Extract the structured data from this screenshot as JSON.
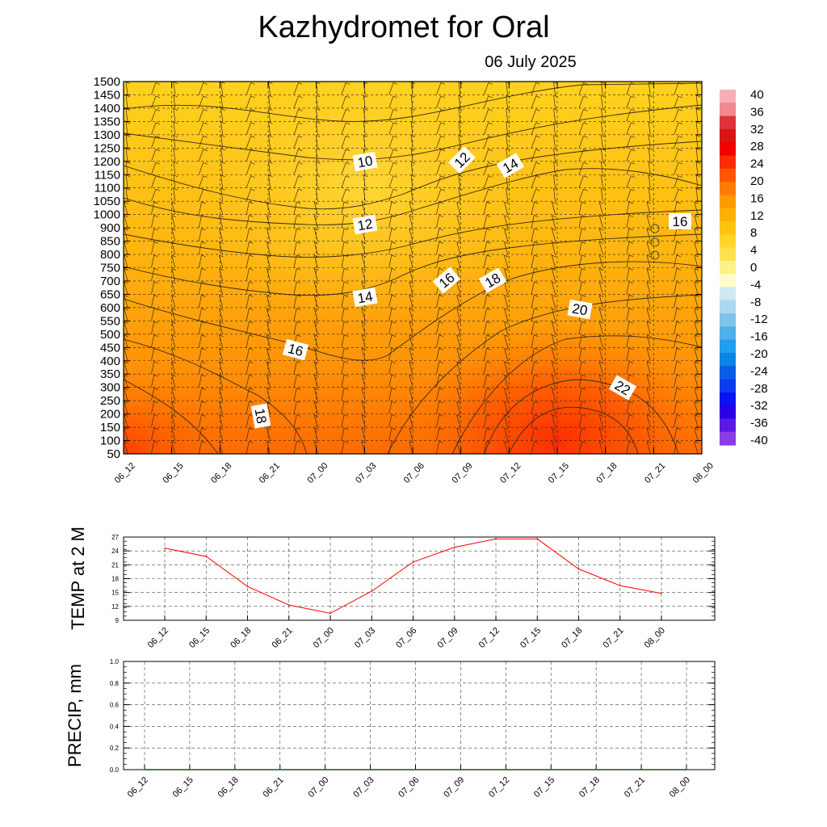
{
  "title": "Kazhydromet  for Oral",
  "subtitle": "06 July 2025",
  "chart_data": [
    {
      "type": "heatmap",
      "ylim": [
        50,
        1500
      ],
      "y_ticks": [
        50,
        100,
        150,
        200,
        250,
        300,
        350,
        400,
        450,
        500,
        550,
        600,
        650,
        700,
        750,
        800,
        850,
        900,
        1000,
        1050,
        1100,
        1150,
        1200,
        1250,
        1300,
        1350,
        1400,
        1450,
        1500
      ],
      "x_ticks": [
        "06_12",
        "06_15",
        "06_18",
        "06_21",
        "07_00",
        "07_03",
        "07_06",
        "07_09",
        "07_12",
        "07_15",
        "07_18",
        "07_21",
        "08_00"
      ],
      "grid": true,
      "colorbar": {
        "ticks": [
          40,
          36,
          32,
          28,
          24,
          20,
          16,
          12,
          8,
          4,
          0,
          -4,
          -8,
          -12,
          -16,
          -20,
          -24,
          -28,
          -32,
          -36,
          -40
        ],
        "colors": [
          "#f7aeb5",
          "#f08a90",
          "#e0323a",
          "#d81414",
          "#f20000",
          "#ff2a00",
          "#ff5500",
          "#ff7a00",
          "#ff9a00",
          "#ffb000",
          "#ffc410",
          "#ffd52a",
          "#ffe050",
          "#fff088",
          "#fffccc",
          "#cfe8f4",
          "#abd8ee",
          "#7fc4ea",
          "#50b0ea",
          "#1e9ff0",
          "#0a84e6",
          "#0a5ee6",
          "#0a3cf0",
          "#0a14f0",
          "#2a00e6",
          "#5a1ae6",
          "#8a3ce6"
        ]
      },
      "contour_labels": [
        "10",
        "12",
        "14",
        "16",
        "18",
        "20",
        "22",
        "12",
        "14",
        "16",
        "16",
        "18"
      ],
      "contour_values": [
        10,
        12,
        14,
        16,
        18,
        20,
        22
      ]
    },
    {
      "type": "line",
      "ylabel": "TEMP at 2 M",
      "categories": [
        "06_12",
        "06_15",
        "06_18",
        "06_21",
        "07_00",
        "07_03",
        "07_06",
        "07_09",
        "07_12",
        "07_15",
        "07_18",
        "07_21",
        "08_00"
      ],
      "y_ticks": [
        9,
        12,
        15,
        18,
        21,
        24,
        27
      ],
      "ylim": [
        9,
        27
      ],
      "series": [
        {
          "values": [
            24.6,
            22.8,
            16.3,
            12.3,
            10.5,
            15.3,
            21.6,
            24.8,
            26.6,
            26.6,
            20.1,
            16.5,
            14.8
          ],
          "color": "#ff0000"
        }
      ],
      "grid": true
    },
    {
      "type": "line",
      "ylabel": "PRECIP, mm",
      "categories": [
        "06_12",
        "06_15",
        "06_18",
        "06_21",
        "07_00",
        "07_03",
        "07_06",
        "07_09",
        "07_12",
        "07_15",
        "07_18",
        "07_21",
        "08_00"
      ],
      "y_ticks": [
        "0.0",
        "0.2",
        "0.4",
        "0.6",
        "0.8",
        "1.0"
      ],
      "ylim": [
        0,
        1
      ],
      "series": [
        {
          "values": [
            0,
            0,
            0,
            0,
            0,
            0,
            0,
            0,
            0,
            0,
            0,
            0,
            0
          ],
          "color": "#008000"
        }
      ],
      "grid": true
    }
  ]
}
